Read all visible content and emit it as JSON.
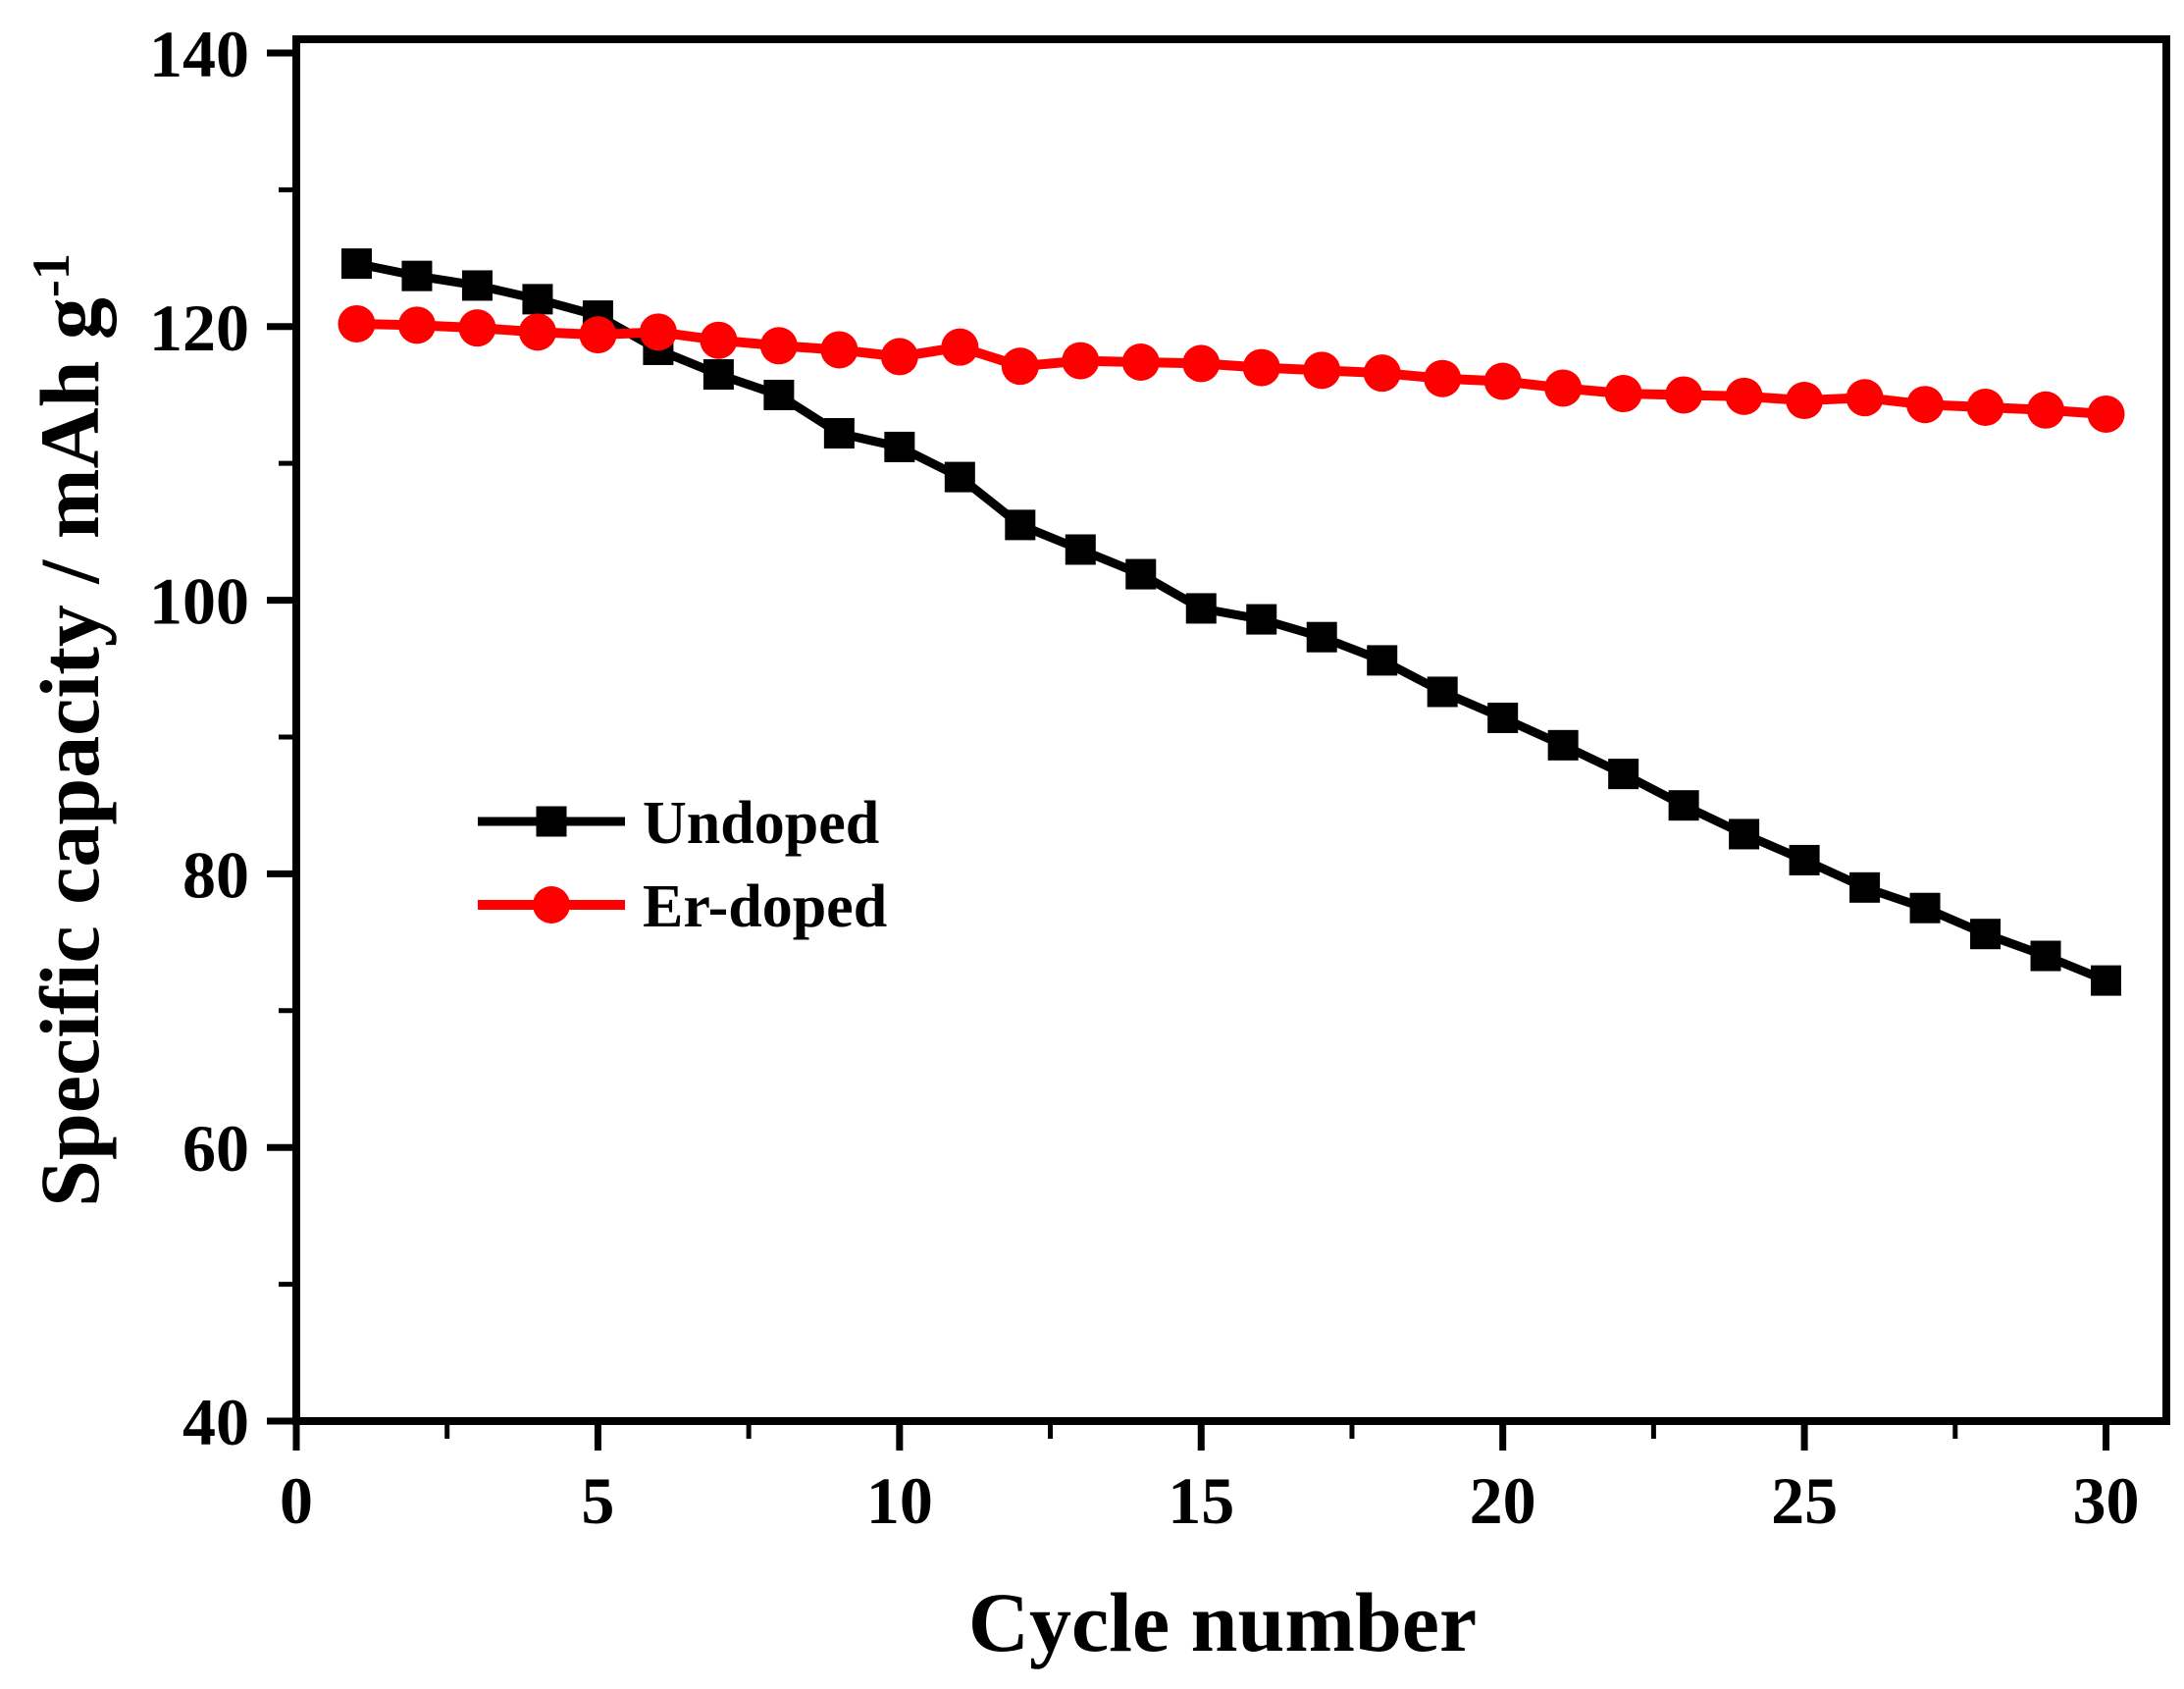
{
  "figure": {
    "background_color": "#ffffff",
    "axis_color": "#000000"
  },
  "y_axis": {
    "label": "Specific capacity / mAh g",
    "label_sup": "-1",
    "tick_labels": [
      140,
      120,
      100,
      80,
      60,
      40
    ],
    "minor_ticks": [
      130,
      110,
      90,
      70,
      50
    ],
    "range": [
      40,
      141
    ]
  },
  "x_axis": {
    "label": "Cycle number",
    "tick_labels": [
      0,
      5,
      10,
      15,
      20,
      25,
      30
    ],
    "minor_ticks": [
      2.5,
      7.5,
      12.5,
      17.5,
      22.5,
      27.5
    ],
    "range": [
      0,
      31
    ]
  },
  "legend": {
    "items": [
      {
        "label": "Undoped",
        "color": "#000000",
        "marker": "square"
      },
      {
        "label": "Er-doped",
        "color": "#ff0000",
        "marker": "circle"
      }
    ]
  },
  "chart_data": {
    "type": "line",
    "title": "",
    "xlabel": "Cycle number",
    "ylabel": "Specific capacity / mAh g^-1",
    "x": [
      1,
      2,
      3,
      4,
      5,
      6,
      7,
      8,
      9,
      10,
      11,
      12,
      13,
      14,
      15,
      16,
      17,
      18,
      19,
      20,
      21,
      22,
      23,
      24,
      25,
      26,
      27,
      28,
      29,
      30
    ],
    "series": [
      {
        "name": "Undoped",
        "color": "#000000",
        "marker": "square",
        "line_width": 9,
        "values": [
          124.6,
          123.7,
          123.0,
          122.0,
          120.8,
          118.3,
          116.5,
          115.0,
          112.2,
          111.2,
          109.0,
          105.5,
          103.7,
          101.9,
          99.4,
          98.6,
          97.3,
          95.6,
          93.3,
          91.4,
          89.4,
          87.3,
          85.0,
          82.9,
          81.0,
          79.0,
          77.5,
          75.6,
          74.0,
          72.2
        ]
      },
      {
        "name": "Er-doped",
        "color": "#ff0000",
        "marker": "circle",
        "line_width": 10,
        "values": [
          120.2,
          120.1,
          119.9,
          119.6,
          119.4,
          119.6,
          119.0,
          118.6,
          118.3,
          117.8,
          118.5,
          117.1,
          117.5,
          117.4,
          117.3,
          117.0,
          116.8,
          116.6,
          116.2,
          116.0,
          115.5,
          115.1,
          115.0,
          114.9,
          114.6,
          114.8,
          114.3,
          114.1,
          113.9,
          113.6
        ]
      }
    ],
    "xlim": [
      0,
      31
    ],
    "ylim": [
      40,
      141
    ],
    "grid": false,
    "legend_position": "inside-center-left"
  }
}
